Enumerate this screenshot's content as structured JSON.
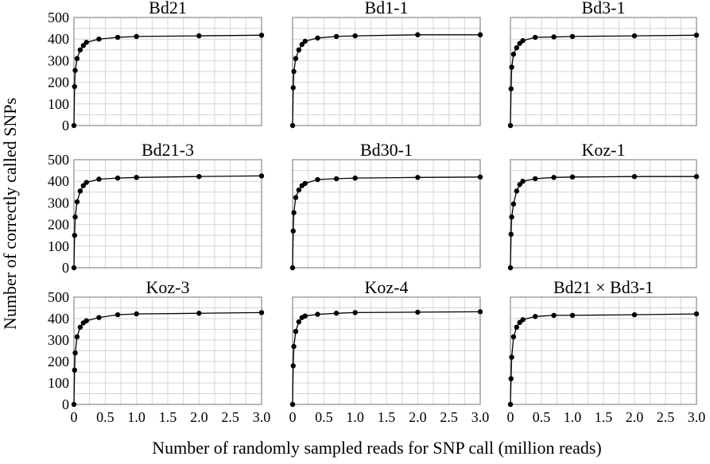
{
  "chart_data": {
    "type": "line",
    "xlabel": "Number of randomly sampled reads for SNP call (million reads)",
    "ylabel": "Number of correctly called SNPs",
    "xlim": [
      0,
      3.0
    ],
    "ylim": [
      0,
      500
    ],
    "x_ticks": [
      "0",
      "0.5",
      "1.0",
      "1.5",
      "2.0",
      "2.5",
      "3.0"
    ],
    "y_ticks": [
      "0",
      "100",
      "200",
      "300",
      "400",
      "500"
    ],
    "grid": true,
    "legend": "none",
    "line_color": "#000000",
    "panels": [
      {
        "title": "Bd21",
        "x": [
          0,
          0.01,
          0.02,
          0.05,
          0.1,
          0.15,
          0.2,
          0.4,
          0.7,
          1.0,
          2.0,
          3.0
        ],
        "y": [
          0,
          180,
          255,
          310,
          350,
          370,
          385,
          400,
          408,
          412,
          415,
          418
        ]
      },
      {
        "title": "Bd1-1",
        "x": [
          0,
          0.01,
          0.02,
          0.05,
          0.1,
          0.15,
          0.2,
          0.4,
          0.7,
          1.0,
          2.0,
          3.0
        ],
        "y": [
          0,
          175,
          250,
          310,
          350,
          375,
          390,
          405,
          412,
          415,
          420,
          420
        ]
      },
      {
        "title": "Bd3-1",
        "x": [
          0,
          0.01,
          0.02,
          0.05,
          0.1,
          0.15,
          0.2,
          0.4,
          0.7,
          1.0,
          2.0,
          3.0
        ],
        "y": [
          0,
          170,
          270,
          330,
          360,
          380,
          393,
          408,
          410,
          412,
          415,
          418
        ]
      },
      {
        "title": "Bd21-3",
        "x": [
          0,
          0.01,
          0.02,
          0.05,
          0.1,
          0.15,
          0.2,
          0.4,
          0.7,
          1.0,
          2.0,
          3.0
        ],
        "y": [
          0,
          150,
          235,
          305,
          355,
          380,
          395,
          410,
          415,
          418,
          422,
          425
        ]
      },
      {
        "title": "Bd30-1",
        "x": [
          0,
          0.01,
          0.02,
          0.05,
          0.1,
          0.15,
          0.2,
          0.4,
          0.7,
          1.0,
          2.0,
          3.0
        ],
        "y": [
          0,
          170,
          255,
          325,
          360,
          380,
          390,
          408,
          412,
          415,
          418,
          420
        ]
      },
      {
        "title": "Koz-1",
        "x": [
          0,
          0.01,
          0.02,
          0.05,
          0.1,
          0.15,
          0.2,
          0.4,
          0.7,
          1.0,
          2.0,
          3.0
        ],
        "y": [
          0,
          155,
          235,
          295,
          355,
          385,
          400,
          412,
          418,
          420,
          422,
          422
        ]
      },
      {
        "title": "Koz-3",
        "x": [
          0,
          0.01,
          0.02,
          0.05,
          0.1,
          0.15,
          0.2,
          0.4,
          0.7,
          1.0,
          2.0,
          3.0
        ],
        "y": [
          0,
          160,
          240,
          315,
          360,
          380,
          390,
          405,
          418,
          422,
          425,
          428
        ]
      },
      {
        "title": "Koz-4",
        "x": [
          0,
          0.01,
          0.02,
          0.05,
          0.1,
          0.15,
          0.2,
          0.4,
          0.7,
          1.0,
          2.0,
          3.0
        ],
        "y": [
          0,
          180,
          270,
          340,
          385,
          405,
          412,
          420,
          425,
          428,
          430,
          432
        ]
      },
      {
        "title": "Bd21 × Bd3-1",
        "x": [
          0,
          0.01,
          0.02,
          0.05,
          0.1,
          0.15,
          0.2,
          0.4,
          0.7,
          1.0,
          2.0,
          3.0
        ],
        "y": [
          0,
          120,
          220,
          315,
          360,
          382,
          395,
          410,
          415,
          415,
          418,
          422
        ]
      }
    ]
  }
}
